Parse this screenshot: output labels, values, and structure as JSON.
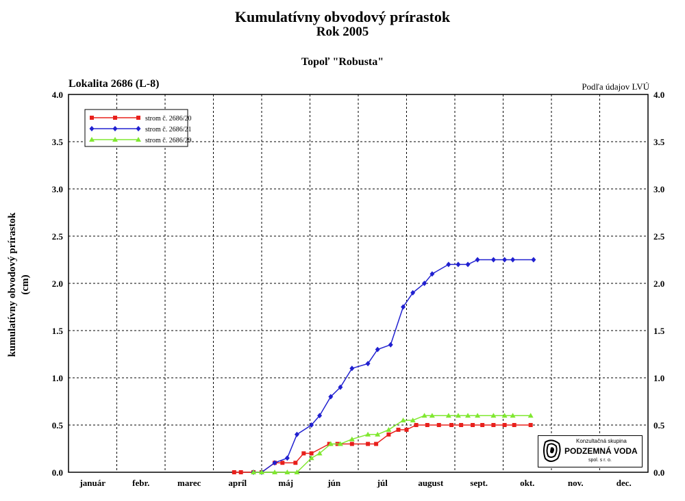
{
  "title": "Kumulatívny obvodový prírastok",
  "subtitle": "Rok 2005",
  "species": "Topoľ \"Robusta\"",
  "locality": "Lokalita 2686 (L-8)",
  "source_note": "Podľa údajov LVÚ",
  "logo": {
    "line1": "Konzultačná skupina",
    "line2": "PODZEMNÁ VODA",
    "line3": "spol. s r. o."
  },
  "chart_data": {
    "type": "line",
    "ylabel": "kumulatívny obvodový prírastok (cm)",
    "ylabel_lines": [
      "kumulatívny obvodový prírastok",
      "(cm)"
    ],
    "ylim": [
      0,
      4.0
    ],
    "yticks": [
      "0.0",
      "0.5",
      "1.0",
      "1.5",
      "2.0",
      "2.5",
      "3.0",
      "3.5",
      "4.0"
    ],
    "xlim": [
      0,
      12
    ],
    "months": [
      "január",
      "febr.",
      "marec",
      "apríl",
      "máj",
      "jún",
      "júl",
      "august",
      "sept.",
      "okt.",
      "nov.",
      "dec."
    ],
    "grid": true,
    "legend_position": "top-left",
    "series": [
      {
        "name": "strom č. 2686/20",
        "color": "#e8201c",
        "marker": "square",
        "points": [
          [
            3.43,
            0.0
          ],
          [
            3.57,
            0.0
          ],
          [
            3.83,
            0.0
          ],
          [
            4.0,
            0.0
          ],
          [
            4.27,
            0.1
          ],
          [
            4.43,
            0.1
          ],
          [
            4.7,
            0.1
          ],
          [
            4.87,
            0.2
          ],
          [
            5.03,
            0.2
          ],
          [
            5.4,
            0.3
          ],
          [
            5.57,
            0.3
          ],
          [
            5.87,
            0.3
          ],
          [
            6.2,
            0.3
          ],
          [
            6.37,
            0.3
          ],
          [
            6.63,
            0.4
          ],
          [
            6.83,
            0.45
          ],
          [
            7.0,
            0.45
          ],
          [
            7.2,
            0.5
          ],
          [
            7.43,
            0.5
          ],
          [
            7.67,
            0.5
          ],
          [
            7.93,
            0.5
          ],
          [
            8.13,
            0.5
          ],
          [
            8.37,
            0.5
          ],
          [
            8.57,
            0.5
          ],
          [
            8.8,
            0.5
          ],
          [
            9.03,
            0.5
          ],
          [
            9.23,
            0.5
          ],
          [
            9.57,
            0.5
          ]
        ]
      },
      {
        "name": "strom č. 2686/21",
        "color": "#2020d0",
        "marker": "diamond",
        "points": [
          [
            3.83,
            0.0
          ],
          [
            4.0,
            0.0
          ],
          [
            4.27,
            0.1
          ],
          [
            4.53,
            0.15
          ],
          [
            4.73,
            0.4
          ],
          [
            5.03,
            0.5
          ],
          [
            5.2,
            0.6
          ],
          [
            5.43,
            0.8
          ],
          [
            5.63,
            0.9
          ],
          [
            5.87,
            1.1
          ],
          [
            6.2,
            1.15
          ],
          [
            6.4,
            1.3
          ],
          [
            6.67,
            1.35
          ],
          [
            6.93,
            1.75
          ],
          [
            7.13,
            1.9
          ],
          [
            7.37,
            2.0
          ],
          [
            7.53,
            2.1
          ],
          [
            7.87,
            2.2
          ],
          [
            8.07,
            2.2
          ],
          [
            8.27,
            2.2
          ],
          [
            8.47,
            2.25
          ],
          [
            8.8,
            2.25
          ],
          [
            9.03,
            2.25
          ],
          [
            9.2,
            2.25
          ],
          [
            9.63,
            2.25
          ]
        ]
      },
      {
        "name": "strom č. 2686/29",
        "color": "#80e830",
        "marker": "triangle",
        "points": [
          [
            3.83,
            0.0
          ],
          [
            4.0,
            0.0
          ],
          [
            4.27,
            0.0
          ],
          [
            4.53,
            0.0
          ],
          [
            4.73,
            0.0
          ],
          [
            5.03,
            0.15
          ],
          [
            5.2,
            0.2
          ],
          [
            5.43,
            0.3
          ],
          [
            5.63,
            0.3
          ],
          [
            5.87,
            0.35
          ],
          [
            6.2,
            0.4
          ],
          [
            6.4,
            0.4
          ],
          [
            6.63,
            0.45
          ],
          [
            6.93,
            0.55
          ],
          [
            7.13,
            0.55
          ],
          [
            7.37,
            0.6
          ],
          [
            7.53,
            0.6
          ],
          [
            7.87,
            0.6
          ],
          [
            8.07,
            0.6
          ],
          [
            8.27,
            0.6
          ],
          [
            8.47,
            0.6
          ],
          [
            8.8,
            0.6
          ],
          [
            9.03,
            0.6
          ],
          [
            9.2,
            0.6
          ],
          [
            9.57,
            0.6
          ]
        ]
      }
    ]
  }
}
